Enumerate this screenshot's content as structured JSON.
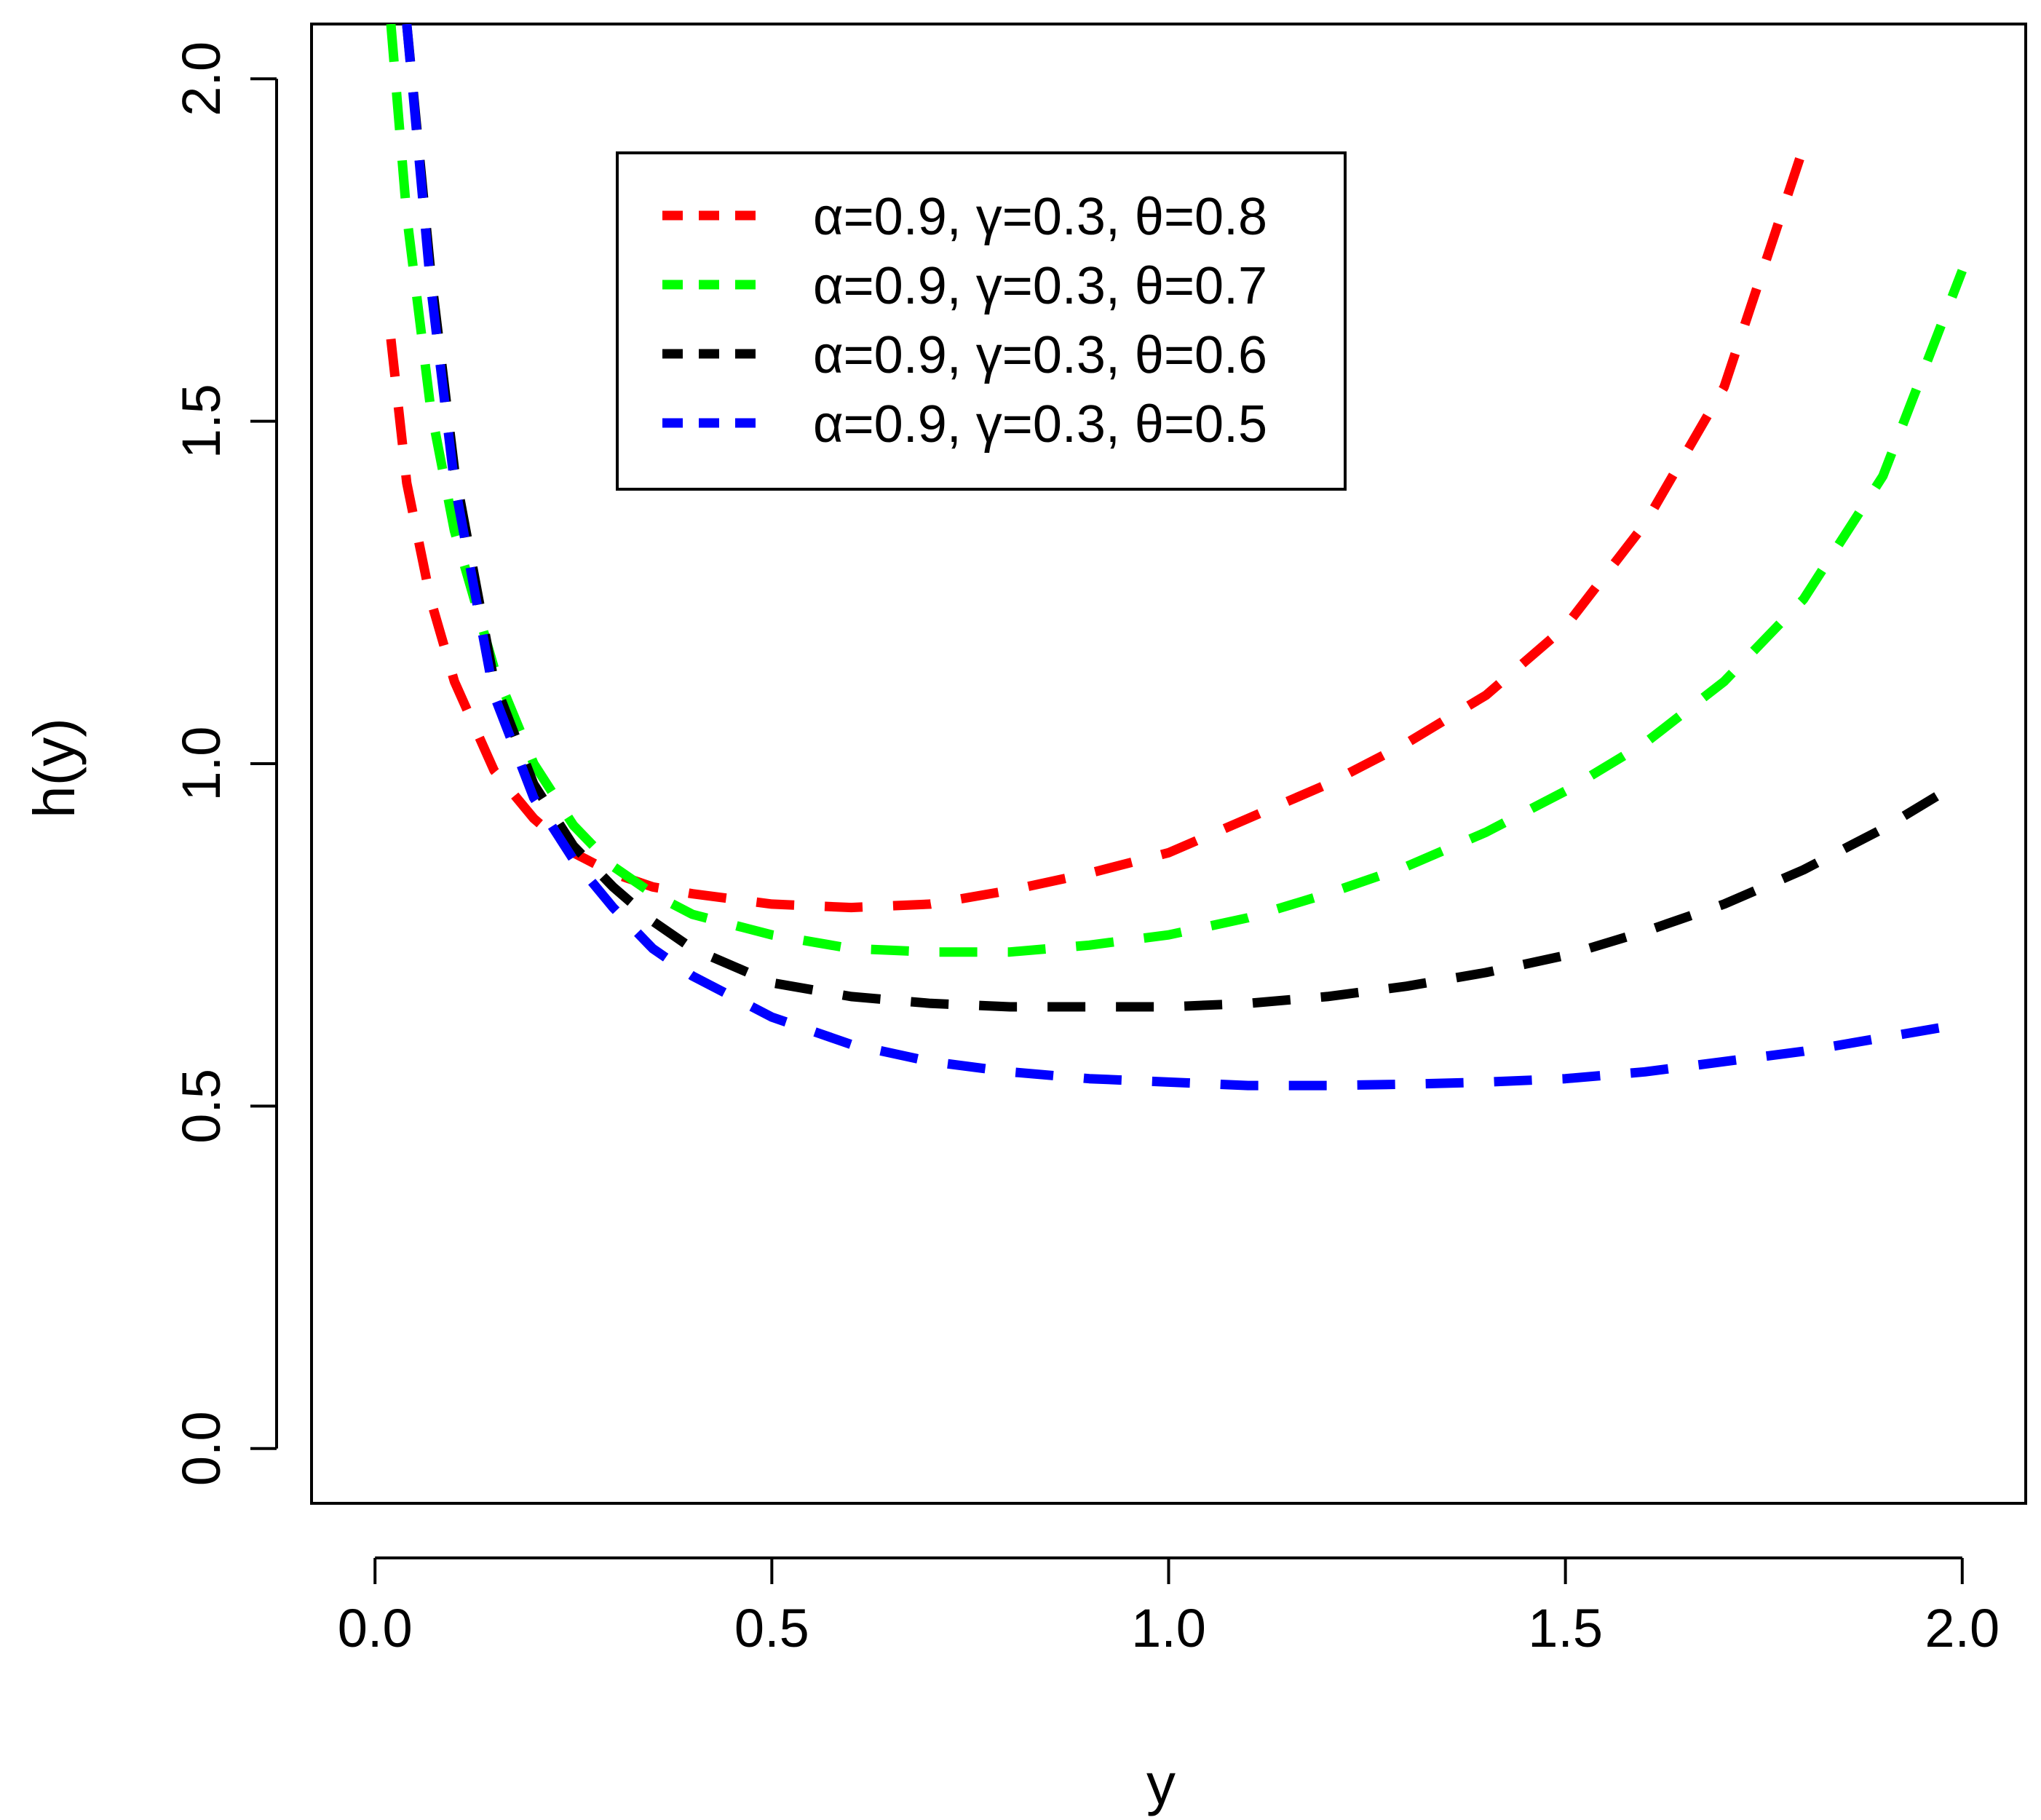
{
  "chart_data": {
    "type": "line",
    "title": "",
    "xlabel": "y",
    "ylabel": "h(y)",
    "xlim": [
      -0.08,
      2.08
    ],
    "ylim": [
      -0.08,
      2.08
    ],
    "xticks": [
      0.0,
      0.5,
      1.0,
      1.5,
      2.0
    ],
    "xtick_labels": [
      "0.0",
      "0.5",
      "1.0",
      "1.5",
      "2.0"
    ],
    "yticks": [
      0.0,
      0.5,
      1.0,
      1.5,
      2.0
    ],
    "ytick_labels": [
      "0.0",
      "0.5",
      "1.0",
      "1.5",
      "2.0"
    ],
    "grid": false,
    "legend_position": "top-center",
    "line_style": "dashed",
    "x": [
      0.02,
      0.04,
      0.07,
      0.1,
      0.15,
      0.2,
      0.25,
      0.3,
      0.35,
      0.4,
      0.5,
      0.6,
      0.7,
      0.8,
      0.9,
      1.0,
      1.1,
      1.2,
      1.3,
      1.4,
      1.5,
      1.6,
      1.7,
      1.8,
      1.9,
      2.0
    ],
    "series": [
      {
        "name": "α=0.9, γ=0.3, θ=0.8",
        "color": "#ff0000",
        "values": [
          1.62,
          1.41,
          1.24,
          1.12,
          0.99,
          0.92,
          0.87,
          0.84,
          0.82,
          0.81,
          0.795,
          0.79,
          0.795,
          0.815,
          0.84,
          0.87,
          0.92,
          0.97,
          1.03,
          1.1,
          1.2,
          1.35,
          1.55,
          1.9,
          null,
          null
        ]
      },
      {
        "name": "α=0.9, γ=0.3, θ=0.7",
        "color": "#00ff00",
        "values": [
          2.08,
          1.8,
          1.52,
          1.34,
          1.14,
          1.0,
          0.91,
          0.85,
          0.81,
          0.78,
          0.75,
          0.73,
          0.725,
          0.725,
          0.735,
          0.75,
          0.775,
          0.81,
          0.85,
          0.9,
          0.96,
          1.03,
          1.12,
          1.24,
          1.42,
          1.72
        ]
      },
      {
        "name": "α=0.9, γ=0.3, θ=0.6",
        "color": "#000000",
        "values": [
          null,
          2.08,
          1.72,
          1.43,
          1.12,
          0.97,
          0.88,
          0.82,
          0.77,
          0.73,
          0.68,
          0.66,
          0.65,
          0.645,
          0.645,
          0.645,
          0.65,
          0.66,
          0.675,
          0.695,
          0.72,
          0.755,
          0.795,
          0.845,
          0.905,
          0.975
        ]
      },
      {
        "name": "α=0.9, γ=0.3, θ=0.5",
        "color": "#0000ff",
        "values": [
          null,
          2.08,
          1.7,
          1.41,
          1.1,
          0.95,
          0.86,
          0.79,
          0.73,
          0.69,
          0.63,
          0.59,
          0.565,
          0.55,
          0.54,
          0.535,
          0.53,
          0.53,
          0.532,
          0.535,
          0.54,
          0.55,
          0.565,
          0.58,
          0.6,
          0.62
        ]
      }
    ]
  }
}
